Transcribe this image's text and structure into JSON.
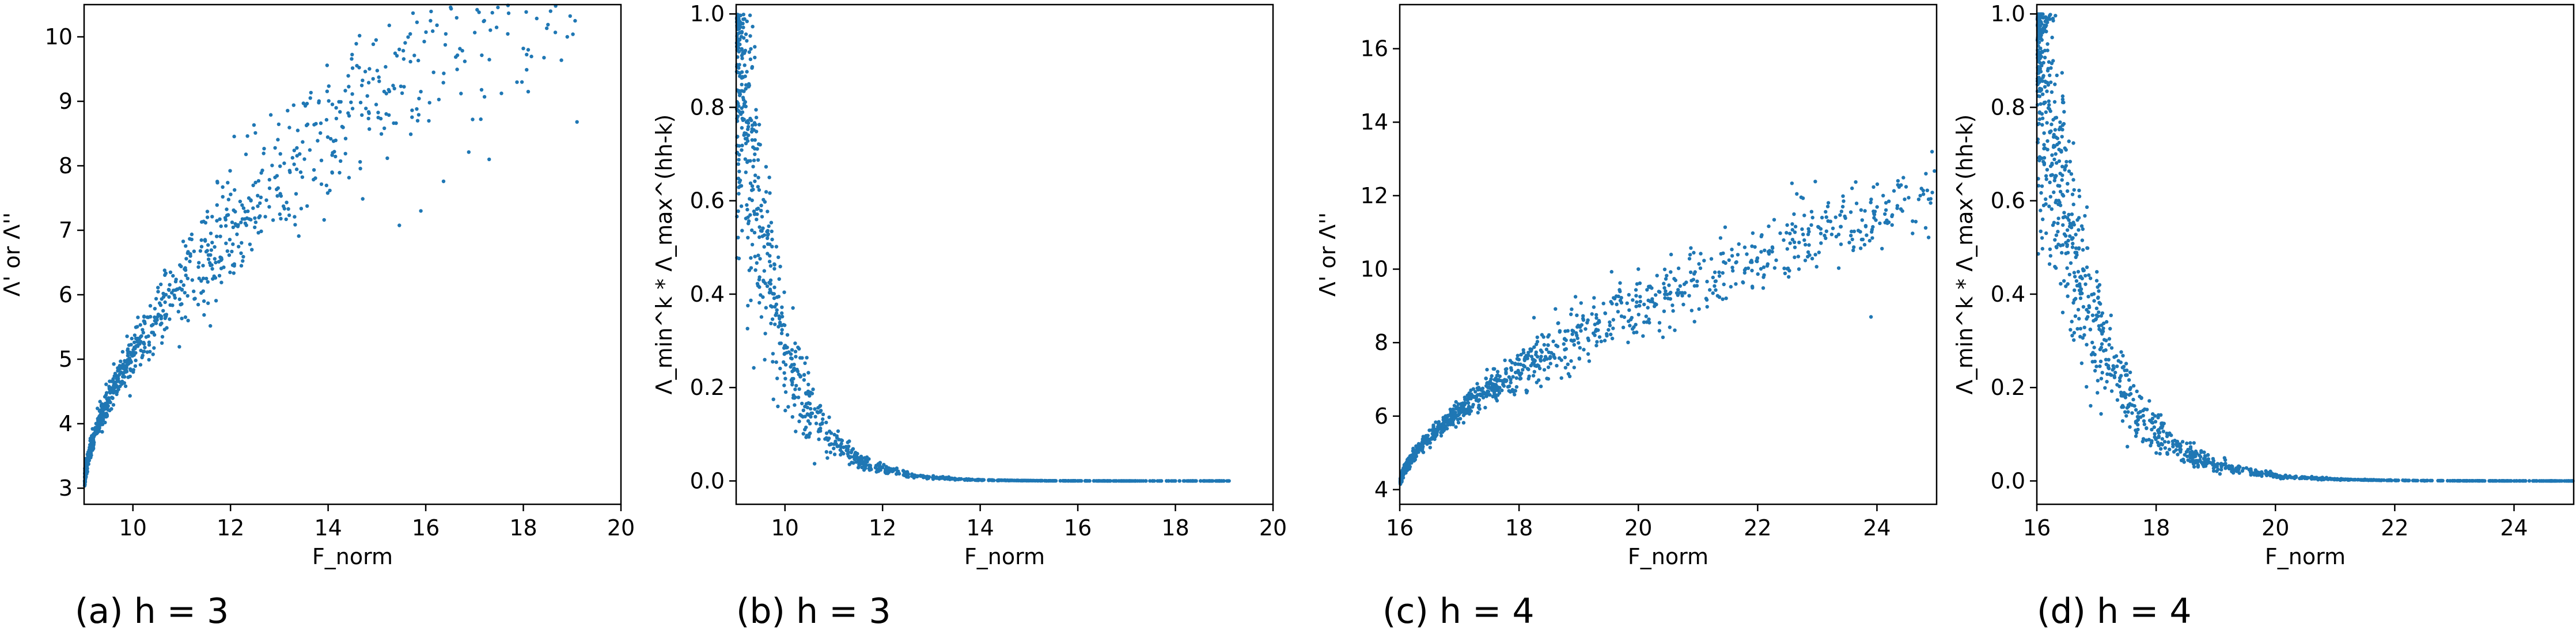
{
  "colors": {
    "points": "#1f77b4",
    "axes": "#000000"
  },
  "chart_data": [
    {
      "type": "scatter",
      "caption": "(a) h = 3",
      "xlabel": "F_norm",
      "ylabel": "Λ' or Λ''",
      "xlim": [
        9,
        20
      ],
      "ylim": [
        2.75,
        10.5
      ],
      "xticks": [
        "10",
        "12",
        "14",
        "16",
        "18",
        "20"
      ],
      "yticks": [
        "3",
        "4",
        "5",
        "6",
        "7",
        "8",
        "9",
        "10"
      ],
      "curve": {
        "kind": "sqrt",
        "x0": 9,
        "y0": 3.0,
        "coef": 2.08,
        "pow": 0.6,
        "spread": 0.07,
        "n": 1100,
        "xmax": 19.1
      },
      "outliers": [
        [
          17.2,
          10.25
        ],
        [
          18.9,
          10.0
        ],
        [
          18.0,
          9.82
        ],
        [
          19.1,
          8.68
        ],
        [
          16.8,
          9.62
        ],
        [
          15.9,
          9.15
        ],
        [
          18.1,
          9.15
        ],
        [
          17.3,
          8.1
        ],
        [
          15.9,
          7.3
        ]
      ]
    },
    {
      "type": "scatter",
      "caption": "(b) h = 3",
      "xlabel": "F_norm",
      "ylabel": "Λ_min^k * Λ_max^(hh-k)",
      "xlim": [
        9,
        20
      ],
      "ylim": [
        -0.05,
        1.02
      ],
      "xticks": [
        "10",
        "12",
        "14",
        "16",
        "18",
        "20"
      ],
      "yticks": [
        "0.0",
        "0.2",
        "0.4",
        "0.6",
        "0.8",
        "1.0"
      ],
      "curve": {
        "kind": "exp",
        "x0": 9,
        "scale": 0.82,
        "spread": 0.22,
        "n": 1100,
        "xmax": 19.1
      },
      "outliers": [
        [
          15.8,
          0.0
        ],
        [
          16.6,
          0.0
        ],
        [
          17.0,
          0.0
        ],
        [
          18.0,
          0.0
        ],
        [
          18.9,
          0.0
        ],
        [
          19.1,
          0.0
        ]
      ]
    },
    {
      "type": "scatter",
      "caption": "(c) h = 4",
      "xlabel": "F_norm",
      "ylabel": "Λ' or Λ''",
      "xlim": [
        16,
        25
      ],
      "ylim": [
        3.6,
        17.2
      ],
      "xticks": [
        "16",
        "18",
        "20",
        "22",
        "24"
      ],
      "yticks": [
        "4",
        "6",
        "8",
        "10",
        "12",
        "14",
        "16"
      ],
      "curve": {
        "kind": "sqrt",
        "x0": 16,
        "y0": 4.1,
        "coef": 2.05,
        "pow": 0.62,
        "spread": 0.05,
        "n": 1300,
        "xmax": 25
      },
      "outliers": [
        [
          22.2,
          10.5
        ],
        [
          24.9,
          11.8
        ],
        [
          20.0,
          10.0
        ],
        [
          23.9,
          8.7
        ],
        [
          24.7,
          11.9
        ],
        [
          22.9,
          11.2
        ]
      ]
    },
    {
      "type": "scatter",
      "caption": "(d) h = 4",
      "xlabel": "F_norm",
      "ylabel": "Λ_min^k * Λ_max^(hh-k)",
      "xlim": [
        16,
        25
      ],
      "ylim": [
        -0.05,
        1.02
      ],
      "xticks": [
        "16",
        "18",
        "20",
        "22",
        "24"
      ],
      "yticks": [
        "0.0",
        "0.2",
        "0.4",
        "0.6",
        "0.8",
        "1.0"
      ],
      "curve": {
        "kind": "exp",
        "x0": 16,
        "scale": 0.9,
        "spread": 0.2,
        "n": 1300,
        "xmax": 25
      },
      "outliers": [
        [
          22.5,
          0.0
        ],
        [
          23.2,
          0.0
        ],
        [
          24.0,
          0.0
        ],
        [
          24.8,
          0.0
        ]
      ]
    }
  ]
}
